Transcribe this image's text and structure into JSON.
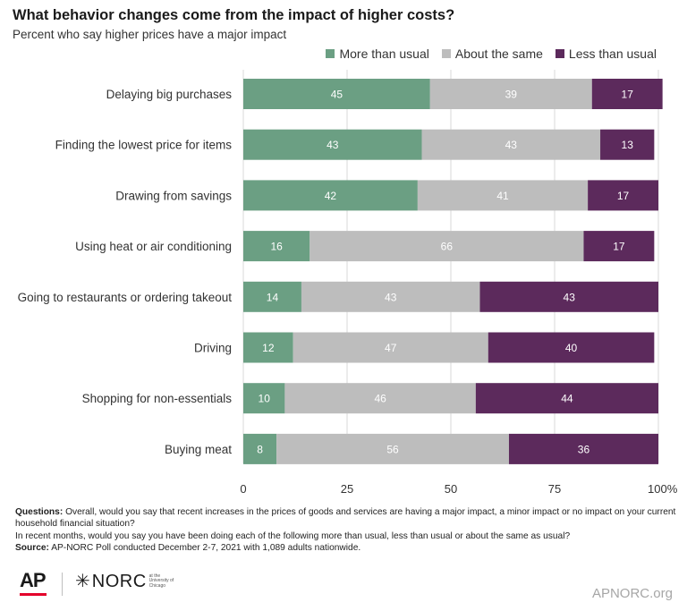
{
  "chart_data": {
    "type": "bar",
    "orientation": "horizontal",
    "stacked": true,
    "title": "What behavior changes come from the impact of higher costs?",
    "subtitle": "Percent who say higher prices have a major impact",
    "categories": [
      "Delaying big purchases",
      "Finding the lowest price for items",
      "Drawing from savings",
      "Using heat or air conditioning",
      "Going to restaurants or ordering takeout",
      "Driving",
      "Shopping for non-essentials",
      "Buying meat"
    ],
    "series": [
      {
        "name": "More than usual",
        "color": "#6b9f83",
        "values": [
          45,
          43,
          42,
          16,
          14,
          12,
          10,
          8
        ]
      },
      {
        "name": "About the same",
        "color": "#bdbdbd",
        "values": [
          39,
          43,
          41,
          66,
          43,
          47,
          46,
          56
        ]
      },
      {
        "name": "Less than usual",
        "color": "#5c2a5c",
        "values": [
          17,
          13,
          17,
          17,
          43,
          40,
          44,
          36
        ]
      }
    ],
    "xlim": [
      0,
      100
    ],
    "xticks": [
      "0",
      "25",
      "50",
      "75",
      "100%"
    ],
    "xtick_values": [
      0,
      25,
      50,
      75,
      100
    ],
    "grid": true,
    "legend": "top-right"
  },
  "notes": {
    "questions_label": "Questions:",
    "questions_text": "Overall, would you say that recent increases in the prices of goods and services are having a major impact, a minor impact or no impact on your current household financial situation?",
    "question2": "In recent months, would you say you have been doing each of the following more than usual, less than usual or about the same as usual?",
    "source_label": "Source:",
    "source_text": "AP-NORC Poll conducted December 2-7, 2021 with 1,089 adults nationwide."
  },
  "footer": {
    "ap_logo": "AP",
    "norc_logo": "NORC",
    "norc_small": "at the University of Chicago",
    "site": "APNORC.org"
  },
  "colors": {
    "more": "#6b9f83",
    "same": "#bdbdbd",
    "less": "#5c2a5c",
    "grid": "#d9d9d9",
    "ap_red": "#e4002b"
  }
}
